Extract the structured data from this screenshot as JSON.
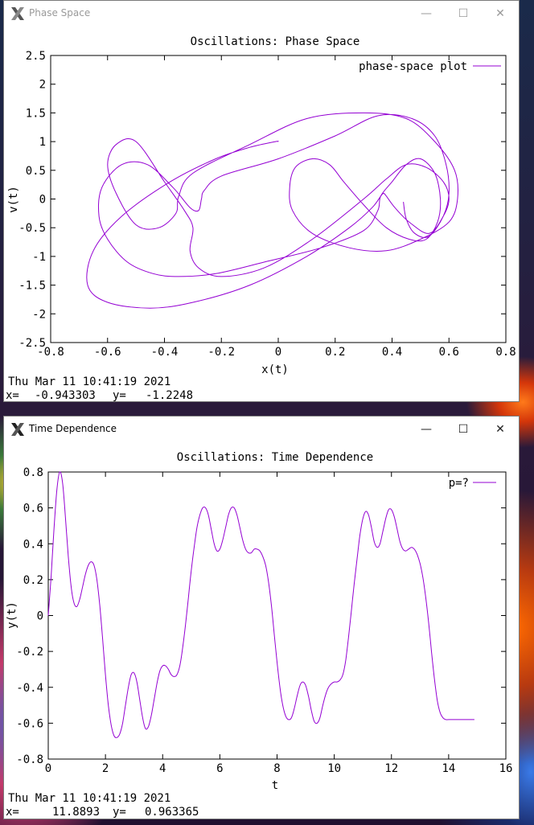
{
  "windows": [
    {
      "title": "Phase Space",
      "minimize": "—",
      "maximize": "☐",
      "close": "✕",
      "active": false
    },
    {
      "title": "Time Dependence",
      "minimize": "—",
      "maximize": "☐",
      "close": "✕",
      "active": true
    }
  ],
  "chart_data": [
    {
      "type": "line",
      "title": "Oscillations: Phase Space",
      "xlabel": "x(t)",
      "ylabel": "v(t)",
      "xlim": [
        -0.8,
        0.8
      ],
      "ylim": [
        -2.5,
        2.5
      ],
      "xticks": [
        "-0.8",
        "-0.6",
        "-0.4",
        "-0.2",
        "0",
        "0.2",
        "0.4",
        "0.6",
        "0.8"
      ],
      "yticks": [
        "2.5",
        "2",
        "1.5",
        "1",
        "0.5",
        "0",
        "-0.5",
        "-1",
        "-1.5",
        "-2",
        "-2.5"
      ],
      "legend_position": "top-right",
      "series": [
        {
          "name": "phase-space plot",
          "color": "#9400d3",
          "x": [
            0.0,
            -0.01,
            -0.1,
            -0.22,
            -0.38,
            -0.55,
            -0.65,
            -0.67,
            -0.6,
            -0.45,
            -0.3,
            -0.1,
            0.1,
            0.25,
            0.33,
            0.36,
            0.37,
            0.38,
            0.41,
            0.46,
            0.53,
            0.58,
            0.6,
            0.58,
            0.52,
            0.45,
            0.38,
            0.3,
            0.12,
            -0.05,
            -0.2,
            -0.28,
            -0.31,
            -0.3,
            -0.33,
            -0.4,
            -0.5,
            -0.57,
            -0.6,
            -0.57,
            -0.5,
            -0.42,
            -0.36,
            -0.35,
            -0.3,
            -0.1,
            0.1,
            0.3,
            0.45,
            0.55,
            0.62,
            0.63,
            0.6,
            0.5,
            0.38,
            0.25,
            0.12,
            0.05,
            0.04,
            0.06,
            0.12,
            0.18,
            0.23,
            0.3,
            0.38,
            0.46,
            0.52,
            0.56,
            0.57,
            0.55,
            0.5,
            0.45,
            0.4,
            0.36,
            0.35,
            0.3,
            0.15,
            -0.05,
            -0.22,
            -0.35,
            -0.44,
            -0.53,
            -0.6,
            -0.63,
            -0.62,
            -0.55,
            -0.46,
            -0.37,
            -0.31,
            -0.28,
            -0.27,
            -0.26,
            -0.2,
            0.0,
            0.2,
            0.35,
            0.47,
            0.55,
            0.59,
            0.6,
            0.58,
            0.53,
            0.48,
            0.45,
            0.44
          ],
          "y": [
            1.0,
            1.0,
            0.9,
            0.7,
            0.3,
            -0.3,
            -0.9,
            -1.5,
            -1.8,
            -1.9,
            -1.8,
            -1.5,
            -1.0,
            -0.5,
            -0.15,
            0.05,
            0.1,
            0.05,
            -0.15,
            -0.4,
            -0.6,
            -0.3,
            0.0,
            0.3,
            0.55,
            0.6,
            0.35,
            0.0,
            -0.7,
            -1.2,
            -1.35,
            -1.2,
            -0.9,
            -0.5,
            -0.2,
            0.3,
            1.0,
            0.95,
            0.6,
            0.1,
            -0.45,
            -0.5,
            -0.25,
            0.05,
            0.45,
            0.95,
            1.4,
            1.5,
            1.4,
            1.0,
            0.5,
            0.0,
            -0.4,
            -0.7,
            -0.9,
            -0.85,
            -0.6,
            -0.2,
            0.2,
            0.55,
            0.7,
            0.6,
            0.3,
            -0.1,
            -0.5,
            -0.7,
            -0.7,
            -0.4,
            0.0,
            0.45,
            0.7,
            0.6,
            0.3,
            0.05,
            -0.2,
            -0.55,
            -0.85,
            -1.1,
            -1.3,
            -1.35,
            -1.3,
            -1.1,
            -0.7,
            -0.3,
            0.2,
            0.6,
            0.6,
            0.2,
            -0.15,
            -0.2,
            0.0,
            0.15,
            0.4,
            0.7,
            1.1,
            1.45,
            1.4,
            1.1,
            0.6,
            0.1,
            -0.3,
            -0.65,
            -0.6,
            -0.35,
            -0.05
          ]
        }
      ],
      "timestamp": "Thu Mar 11 10:41:19 2021",
      "cursor_x_label": "x=",
      "cursor_x": "-0.943303",
      "cursor_y_label": "y=",
      "cursor_y": "-1.2248"
    },
    {
      "type": "line",
      "title": "Oscillations: Time Dependence",
      "xlabel": "t",
      "ylabel": "y(t)",
      "xlim": [
        0,
        16
      ],
      "ylim": [
        -0.8,
        0.8
      ],
      "xticks": [
        "0",
        "2",
        "4",
        "6",
        "8",
        "10",
        "12",
        "14",
        "16"
      ],
      "yticks": [
        "0.8",
        "0.6",
        "0.4",
        "0.2",
        "0",
        "-0.2",
        "-0.4",
        "-0.6",
        "-0.8"
      ],
      "legend_position": "top-right",
      "series": [
        {
          "name": "p=?",
          "color": "#9400d3",
          "x": [
            0.0,
            0.1,
            0.2,
            0.3,
            0.4,
            0.5,
            0.6,
            0.7,
            0.8,
            0.9,
            1.0,
            1.1,
            1.2,
            1.3,
            1.4,
            1.5,
            1.6,
            1.7,
            1.8,
            1.9,
            2.0,
            2.1,
            2.2,
            2.3,
            2.4,
            2.5,
            2.6,
            2.7,
            2.8,
            2.9,
            3.0,
            3.1,
            3.2,
            3.3,
            3.4,
            3.5,
            3.6,
            3.7,
            3.8,
            3.9,
            4.0,
            4.1,
            4.2,
            4.3,
            4.4,
            4.5,
            4.6,
            4.7,
            4.8,
            4.9,
            5.0,
            5.1,
            5.2,
            5.3,
            5.4,
            5.5,
            5.6,
            5.7,
            5.8,
            5.9,
            6.0,
            6.1,
            6.2,
            6.3,
            6.4,
            6.5,
            6.6,
            6.7,
            6.8,
            6.9,
            7.0,
            7.1,
            7.2,
            7.3,
            7.4,
            7.5,
            7.6,
            7.7,
            7.8,
            7.9,
            8.0,
            8.1,
            8.2,
            8.3,
            8.4,
            8.5,
            8.6,
            8.7,
            8.8,
            8.9,
            9.0,
            9.1,
            9.2,
            9.3,
            9.4,
            9.5,
            9.6,
            9.7,
            9.8,
            9.9,
            10.0,
            10.1,
            10.2,
            10.3,
            10.4,
            10.5,
            10.6,
            10.7,
            10.8,
            10.9,
            11.0,
            11.1,
            11.2,
            11.3,
            11.4,
            11.5,
            11.6,
            11.7,
            11.8,
            11.9,
            12.0,
            12.1,
            12.2,
            12.3,
            12.4,
            12.5,
            12.6,
            12.7,
            12.8,
            12.9,
            13.0,
            13.1,
            13.2,
            13.3,
            13.4,
            13.5,
            13.6,
            13.7,
            13.8,
            13.9,
            14.0,
            14.1,
            14.2,
            14.3,
            14.4,
            14.5,
            14.6,
            14.7,
            14.8,
            14.9
          ],
          "y": [
            0.0,
            0.22,
            0.48,
            0.7,
            0.8,
            0.74,
            0.55,
            0.33,
            0.16,
            0.07,
            0.05,
            0.09,
            0.16,
            0.23,
            0.28,
            0.3,
            0.28,
            0.2,
            0.06,
            -0.13,
            -0.33,
            -0.5,
            -0.61,
            -0.67,
            -0.68,
            -0.66,
            -0.6,
            -0.5,
            -0.4,
            -0.33,
            -0.32,
            -0.37,
            -0.47,
            -0.57,
            -0.63,
            -0.62,
            -0.56,
            -0.47,
            -0.38,
            -0.31,
            -0.28,
            -0.28,
            -0.3,
            -0.33,
            -0.34,
            -0.33,
            -0.28,
            -0.18,
            -0.05,
            0.1,
            0.25,
            0.38,
            0.49,
            0.56,
            0.6,
            0.6,
            0.56,
            0.48,
            0.4,
            0.36,
            0.37,
            0.42,
            0.49,
            0.56,
            0.6,
            0.6,
            0.56,
            0.49,
            0.42,
            0.37,
            0.35,
            0.35,
            0.37,
            0.37,
            0.36,
            0.33,
            0.28,
            0.19,
            0.06,
            -0.1,
            -0.26,
            -0.4,
            -0.5,
            -0.56,
            -0.58,
            -0.57,
            -0.52,
            -0.45,
            -0.39,
            -0.37,
            -0.39,
            -0.45,
            -0.53,
            -0.59,
            -0.6,
            -0.57,
            -0.5,
            -0.44,
            -0.4,
            -0.38,
            -0.37,
            -0.37,
            -0.36,
            -0.33,
            -0.25,
            -0.12,
            0.03,
            0.18,
            0.32,
            0.45,
            0.54,
            0.58,
            0.56,
            0.49,
            0.41,
            0.38,
            0.4,
            0.47,
            0.54,
            0.59,
            0.59,
            0.55,
            0.48,
            0.41,
            0.37,
            0.36,
            0.37,
            0.38,
            0.37,
            0.34,
            0.29,
            0.21,
            0.1,
            -0.04,
            -0.2,
            -0.35,
            -0.47,
            -0.54,
            -0.57,
            -0.58,
            -0.58,
            -0.58,
            -0.58,
            -0.58,
            -0.58,
            -0.58,
            -0.58,
            -0.58,
            -0.58,
            -0.58
          ]
        }
      ],
      "timestamp": "Thu Mar 11 10:41:19 2021",
      "cursor_x_label": "x=",
      "cursor_x": "11.8893",
      "cursor_y_label": "y=",
      "cursor_y": "0.963365"
    }
  ]
}
